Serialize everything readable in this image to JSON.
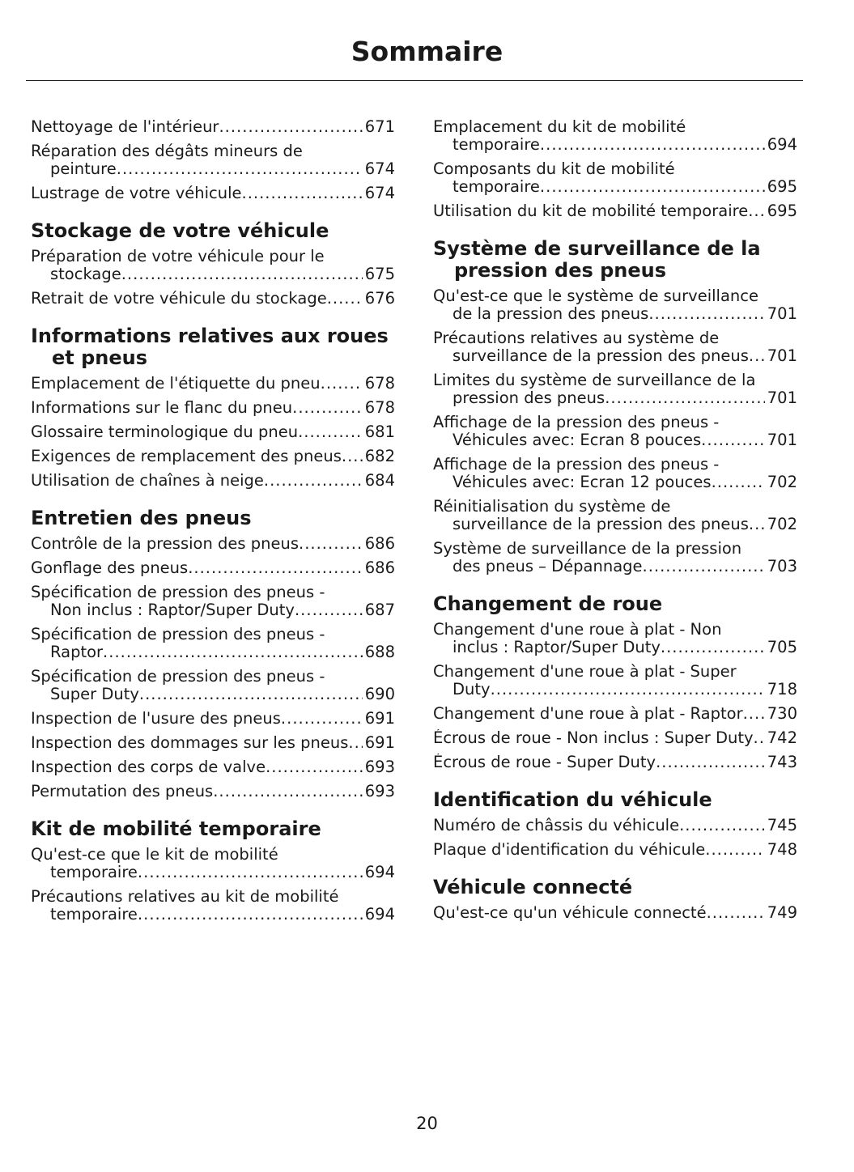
{
  "header": {
    "title": "Sommaire"
  },
  "columns": [
    {
      "sections": [
        {
          "entries": [
            {
              "text": "Nettoyage de l'intérieur",
              "page": 671
            },
            {
              "text": "Réparation des dégâts mineurs de peinture",
              "page": 674
            },
            {
              "text": "Lustrage de votre véhicule",
              "page": 674
            }
          ]
        },
        {
          "heading": "Stockage de votre véhicule",
          "entries": [
            {
              "text": "Préparation de votre véhicule pour le stockage",
              "page": 675
            },
            {
              "text": "Retrait de votre véhicule du stockage",
              "page": 676
            }
          ]
        },
        {
          "heading": "Informations relatives aux roues et pneus",
          "entries": [
            {
              "text": "Emplacement de l'étiquette du pneu",
              "page": 678
            },
            {
              "text": "Informations sur le flanc du pneu",
              "page": 678
            },
            {
              "text": "Glossaire terminologique du pneu",
              "page": 681
            },
            {
              "text": "Exigences de remplacement des pneus",
              "page": 682
            },
            {
              "text": "Utilisation de chaînes à neige",
              "page": 684
            }
          ]
        },
        {
          "heading": "Entretien des pneus",
          "entries": [
            {
              "text": "Contrôle de la pression des pneus",
              "page": 686
            },
            {
              "text": "Gonflage des pneus",
              "page": 686
            },
            {
              "text": "Spécification de pression des pneus - Non inclus : Raptor/Super Duty",
              "page": 687
            },
            {
              "text": "Spécification de pression des pneus - Raptor",
              "page": 688
            },
            {
              "text": "Spécification de pression des pneus - Super Duty",
              "page": 690
            },
            {
              "text": "Inspection de l'usure des pneus",
              "page": 691
            },
            {
              "text": "Inspection des dommages sur les pneus",
              "page": 691
            },
            {
              "text": "Inspection des corps de valve",
              "page": 693
            },
            {
              "text": "Permutation des pneus",
              "page": 693
            }
          ]
        },
        {
          "heading": "Kit de mobilité temporaire",
          "entries": [
            {
              "text": "Qu'est-ce que le kit de mobilité temporaire",
              "page": 694
            },
            {
              "text": "Précautions relatives au kit de mobilité temporaire",
              "page": 694
            }
          ]
        }
      ]
    },
    {
      "sections": [
        {
          "entries": [
            {
              "text": "Emplacement du kit de mobilité temporaire",
              "page": 694
            },
            {
              "text": "Composants du kit de mobilité temporaire",
              "page": 695
            },
            {
              "text": "Utilisation du kit de mobilité temporaire",
              "page": 695
            }
          ]
        },
        {
          "heading": "Système de surveillance de la pression des pneus",
          "entries": [
            {
              "text": "Qu'est-ce que le système de surveillance de la pression des pneus",
              "page": 701
            },
            {
              "text": "Précautions relatives au système de surveillance de la pression des pneus",
              "page": 701
            },
            {
              "text": "Limites du système de surveillance de la pression des pneus",
              "page": 701
            },
            {
              "text": "Affichage de la pression des pneus - Véhicules avec: Ecran 8 pouces",
              "page": 701
            },
            {
              "text": "Affichage de la pression des pneus - Véhicules avec: Ecran 12 pouces",
              "page": 702
            },
            {
              "text": "Réinitialisation du système de surveillance de la pression des pneus",
              "page": 702
            },
            {
              "text": "Système de surveillance de la pression des pneus – Dépannage",
              "page": 703
            }
          ]
        },
        {
          "heading": "Changement de roue",
          "entries": [
            {
              "text": "Changement d'une roue à plat - Non inclus : Raptor/Super Duty",
              "page": 705
            },
            {
              "text": "Changement d'une roue à plat - Super Duty",
              "page": 718
            },
            {
              "text": "Changement d'une roue à plat - Raptor",
              "page": 730
            },
            {
              "text": "Écrous de roue - Non inclus : Super Duty",
              "page": 742
            },
            {
              "text": "Écrous de roue - Super Duty",
              "page": 743
            }
          ]
        },
        {
          "heading": "Identification du véhicule",
          "entries": [
            {
              "text": "Numéro de châssis du véhicule",
              "page": 745
            },
            {
              "text": "Plaque d'identification du véhicule",
              "page": 748
            }
          ]
        },
        {
          "heading": "Véhicule connecté",
          "entries": [
            {
              "text": "Qu'est-ce qu'un véhicule connecté",
              "page": 749
            }
          ]
        }
      ]
    }
  ],
  "footer": {
    "page_number": 20
  }
}
